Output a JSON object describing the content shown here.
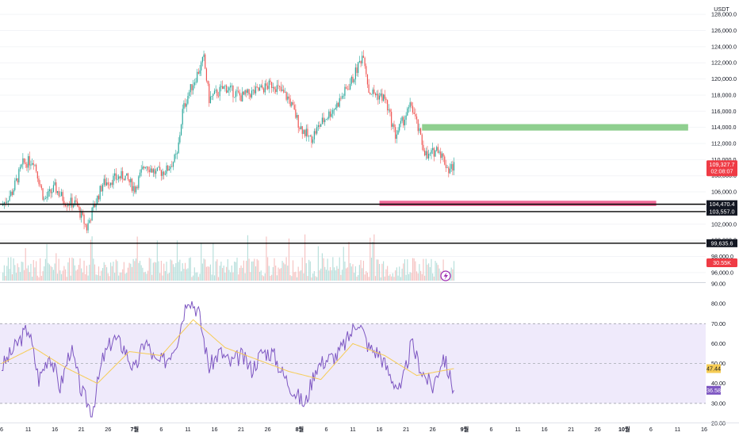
{
  "chart_data": [
    {
      "type": "candlestick",
      "currency": "USDT",
      "ylim": [
        95000,
        129000
      ],
      "yticks": [
        96000,
        98000,
        100000,
        102000,
        104000,
        106000,
        108000,
        110000,
        112000,
        114000,
        116000,
        118000,
        120000,
        122000,
        124000,
        126000,
        128000
      ],
      "price_path": [
        {
          "date": "2025-06-06",
          "close": 104300
        },
        {
          "date": "2025-06-08",
          "close": 106000
        },
        {
          "date": "2025-06-10",
          "close": 109500
        },
        {
          "date": "2025-06-12",
          "close": 110000
        },
        {
          "date": "2025-06-14",
          "close": 105000
        },
        {
          "date": "2025-06-16",
          "close": 106500
        },
        {
          "date": "2025-06-18",
          "close": 104800
        },
        {
          "date": "2025-06-20",
          "close": 104500
        },
        {
          "date": "2025-06-22",
          "close": 101500
        },
        {
          "date": "2025-06-23",
          "close": 103500
        },
        {
          "date": "2025-06-25",
          "close": 107000
        },
        {
          "date": "2025-06-27",
          "close": 107600
        },
        {
          "date": "2025-06-29",
          "close": 108000
        },
        {
          "date": "2025-07-01",
          "close": 106400
        },
        {
          "date": "2025-07-03",
          "close": 109500
        },
        {
          "date": "2025-07-05",
          "close": 108300
        },
        {
          "date": "2025-07-07",
          "close": 108700
        },
        {
          "date": "2025-07-09",
          "close": 110500
        },
        {
          "date": "2025-07-10",
          "close": 116000
        },
        {
          "date": "2025-07-11",
          "close": 118000
        },
        {
          "date": "2025-07-14",
          "close": 122500
        },
        {
          "date": "2025-07-15",
          "close": 117500
        },
        {
          "date": "2025-07-18",
          "close": 119000
        },
        {
          "date": "2025-07-21",
          "close": 117800
        },
        {
          "date": "2025-07-24",
          "close": 118500
        },
        {
          "date": "2025-07-27",
          "close": 119400
        },
        {
          "date": "2025-07-30",
          "close": 117500
        },
        {
          "date": "2025-08-01",
          "close": 114200
        },
        {
          "date": "2025-08-03",
          "close": 112500
        },
        {
          "date": "2025-08-05",
          "close": 114500
        },
        {
          "date": "2025-08-08",
          "close": 116800
        },
        {
          "date": "2025-08-11",
          "close": 120000
        },
        {
          "date": "2025-08-13",
          "close": 123300
        },
        {
          "date": "2025-08-14",
          "close": 118500
        },
        {
          "date": "2025-08-17",
          "close": 117600
        },
        {
          "date": "2025-08-19",
          "close": 113000
        },
        {
          "date": "2025-08-22",
          "close": 116800
        },
        {
          "date": "2025-08-24",
          "close": 112000
        },
        {
          "date": "2025-08-25",
          "close": 110200
        },
        {
          "date": "2025-08-27",
          "close": 111500
        },
        {
          "date": "2025-08-29",
          "close": 108700
        },
        {
          "date": "2025-08-30",
          "close": 109327.7
        }
      ],
      "volume_label": "30.55K",
      "last_price_label": "109,327.7",
      "countdown_label": "02:08:07",
      "horizontal_lines": [
        {
          "value": 104470.4,
          "label": "104,470.4"
        },
        {
          "value": 103557.0,
          "label": "103,557.0"
        },
        {
          "value": 99635.6,
          "label": "99,635.6"
        }
      ],
      "zones": [
        {
          "color": "#8fcf8f",
          "from_date": "2025-08-24",
          "to_date": "2025-10-13",
          "low": 113600,
          "high": 114400
        },
        {
          "color": "#f06a98",
          "from_date": "2025-08-16",
          "to_date": "2025-10-07",
          "low": 104250,
          "high": 104900
        }
      ]
    },
    {
      "type": "line",
      "indicator": "RSI",
      "ylim": [
        20,
        90
      ],
      "yticks": [
        20,
        30,
        40,
        50,
        60,
        70,
        80,
        90
      ],
      "band": [
        30,
        70
      ],
      "midline": 50,
      "series": [
        {
          "color": "#7e57c2",
          "last_label": "36.58"
        },
        {
          "color": "#f6cc55",
          "last_label": "47.44"
        }
      ],
      "rsi_path": [
        {
          "date": "2025-06-06",
          "value": 48
        },
        {
          "date": "2025-06-09",
          "value": 60
        },
        {
          "date": "2025-06-11",
          "value": 68
        },
        {
          "date": "2025-06-13",
          "value": 42
        },
        {
          "date": "2025-06-15",
          "value": 55
        },
        {
          "date": "2025-06-17",
          "value": 38
        },
        {
          "date": "2025-06-19",
          "value": 58
        },
        {
          "date": "2025-06-21",
          "value": 36
        },
        {
          "date": "2025-06-23",
          "value": 26
        },
        {
          "date": "2025-06-25",
          "value": 52
        },
        {
          "date": "2025-06-27",
          "value": 63
        },
        {
          "date": "2025-06-29",
          "value": 58
        },
        {
          "date": "2025-07-01",
          "value": 46
        },
        {
          "date": "2025-07-03",
          "value": 62
        },
        {
          "date": "2025-07-05",
          "value": 50
        },
        {
          "date": "2025-07-07",
          "value": 52
        },
        {
          "date": "2025-07-09",
          "value": 62
        },
        {
          "date": "2025-07-11",
          "value": 84
        },
        {
          "date": "2025-07-13",
          "value": 76
        },
        {
          "date": "2025-07-15",
          "value": 48
        },
        {
          "date": "2025-07-17",
          "value": 56
        },
        {
          "date": "2025-07-19",
          "value": 50
        },
        {
          "date": "2025-07-21",
          "value": 54
        },
        {
          "date": "2025-07-23",
          "value": 47
        },
        {
          "date": "2025-07-25",
          "value": 56
        },
        {
          "date": "2025-07-27",
          "value": 55
        },
        {
          "date": "2025-07-29",
          "value": 44
        },
        {
          "date": "2025-07-31",
          "value": 36
        },
        {
          "date": "2025-08-02",
          "value": 29
        },
        {
          "date": "2025-08-04",
          "value": 48
        },
        {
          "date": "2025-08-06",
          "value": 52
        },
        {
          "date": "2025-08-08",
          "value": 54
        },
        {
          "date": "2025-08-10",
          "value": 62
        },
        {
          "date": "2025-08-12",
          "value": 72
        },
        {
          "date": "2025-08-14",
          "value": 58
        },
        {
          "date": "2025-08-16",
          "value": 55
        },
        {
          "date": "2025-08-18",
          "value": 44
        },
        {
          "date": "2025-08-20",
          "value": 36
        },
        {
          "date": "2025-08-22",
          "value": 60
        },
        {
          "date": "2025-08-24",
          "value": 46
        },
        {
          "date": "2025-08-26",
          "value": 38
        },
        {
          "date": "2025-08-28",
          "value": 54
        },
        {
          "date": "2025-08-30",
          "value": 36.58
        }
      ],
      "rsi_ma_path": [
        {
          "date": "2025-06-06",
          "value": 50
        },
        {
          "date": "2025-06-12",
          "value": 58
        },
        {
          "date": "2025-06-18",
          "value": 48
        },
        {
          "date": "2025-06-24",
          "value": 40
        },
        {
          "date": "2025-06-30",
          "value": 56
        },
        {
          "date": "2025-07-06",
          "value": 54
        },
        {
          "date": "2025-07-12",
          "value": 72
        },
        {
          "date": "2025-07-18",
          "value": 58
        },
        {
          "date": "2025-07-24",
          "value": 52
        },
        {
          "date": "2025-07-30",
          "value": 46
        },
        {
          "date": "2025-08-05",
          "value": 42
        },
        {
          "date": "2025-08-11",
          "value": 60
        },
        {
          "date": "2025-08-17",
          "value": 54
        },
        {
          "date": "2025-08-23",
          "value": 44
        },
        {
          "date": "2025-08-30",
          "value": 47.44
        }
      ]
    }
  ],
  "x_axis": {
    "start_date": "2025-06-06",
    "end_date": "2025-10-16",
    "ticks": [
      {
        "date": "2025-06-06",
        "label": "6"
      },
      {
        "date": "2025-06-11",
        "label": "11"
      },
      {
        "date": "2025-06-16",
        "label": "16"
      },
      {
        "date": "2025-06-21",
        "label": "21"
      },
      {
        "date": "2025-06-26",
        "label": "26"
      },
      {
        "date": "2025-07-01",
        "label": "7월",
        "bold": true
      },
      {
        "date": "2025-07-06",
        "label": "6"
      },
      {
        "date": "2025-07-11",
        "label": "11"
      },
      {
        "date": "2025-07-16",
        "label": "16"
      },
      {
        "date": "2025-07-21",
        "label": "21"
      },
      {
        "date": "2025-07-26",
        "label": "26"
      },
      {
        "date": "2025-08-01",
        "label": "8월",
        "bold": true
      },
      {
        "date": "2025-08-06",
        "label": "6"
      },
      {
        "date": "2025-08-11",
        "label": "11"
      },
      {
        "date": "2025-08-16",
        "label": "16"
      },
      {
        "date": "2025-08-21",
        "label": "21"
      },
      {
        "date": "2025-08-26",
        "label": "26"
      },
      {
        "date": "2025-09-01",
        "label": "9월",
        "bold": true
      },
      {
        "date": "2025-09-06",
        "label": "6"
      },
      {
        "date": "2025-09-11",
        "label": "11"
      },
      {
        "date": "2025-09-16",
        "label": "16"
      },
      {
        "date": "2025-09-21",
        "label": "21"
      },
      {
        "date": "2025-09-26",
        "label": "26"
      },
      {
        "date": "2025-10-01",
        "label": "10월",
        "bold": true
      },
      {
        "date": "2025-10-06",
        "label": "6"
      },
      {
        "date": "2025-10-11",
        "label": "11"
      },
      {
        "date": "2025-10-16",
        "label": "16"
      }
    ]
  },
  "colors": {
    "up": "#26a69a",
    "down": "#ef5350",
    "vol_up": "#b7dfdb",
    "vol_down": "#f5c3c2",
    "price_tag": "#ef3b45",
    "rsi_bg": "#efeafb",
    "line_tag": "#131722",
    "bolt": "#9c27b0"
  }
}
